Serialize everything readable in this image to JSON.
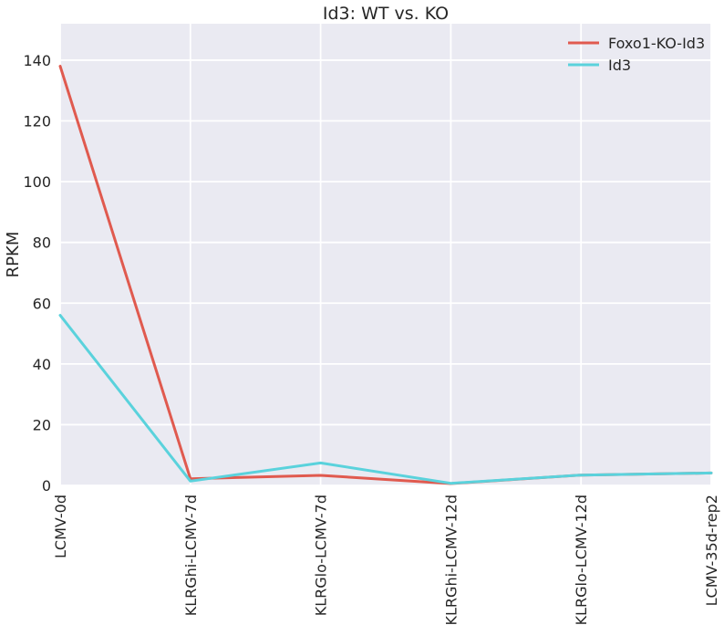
{
  "chart_data": {
    "type": "line",
    "title": "Id3: WT vs. KO",
    "xlabel": "",
    "ylabel": "RPKM",
    "categories": [
      "LCMV-0d",
      "KLRGhi-LCMV-7d",
      "KLRGlo-LCMV-7d",
      "KLRGhi-LCMV-12d",
      "KLRGlo-LCMV-12d",
      "LCMV-35d-rep2"
    ],
    "ylim": [
      0,
      152
    ],
    "yticks": [
      0,
      20,
      40,
      60,
      80,
      100,
      120,
      140
    ],
    "grid": true,
    "legend_position": "top-right",
    "series": [
      {
        "name": "Foxo1-KO-Id3",
        "color": "#e05a4f",
        "values": [
          138,
          2.2,
          3.3,
          0.6,
          3.4,
          4.1
        ]
      },
      {
        "name": "Id3",
        "color": "#5ad2dc",
        "values": [
          56,
          1.4,
          7.4,
          0.7,
          3.4,
          4.1
        ]
      }
    ]
  }
}
